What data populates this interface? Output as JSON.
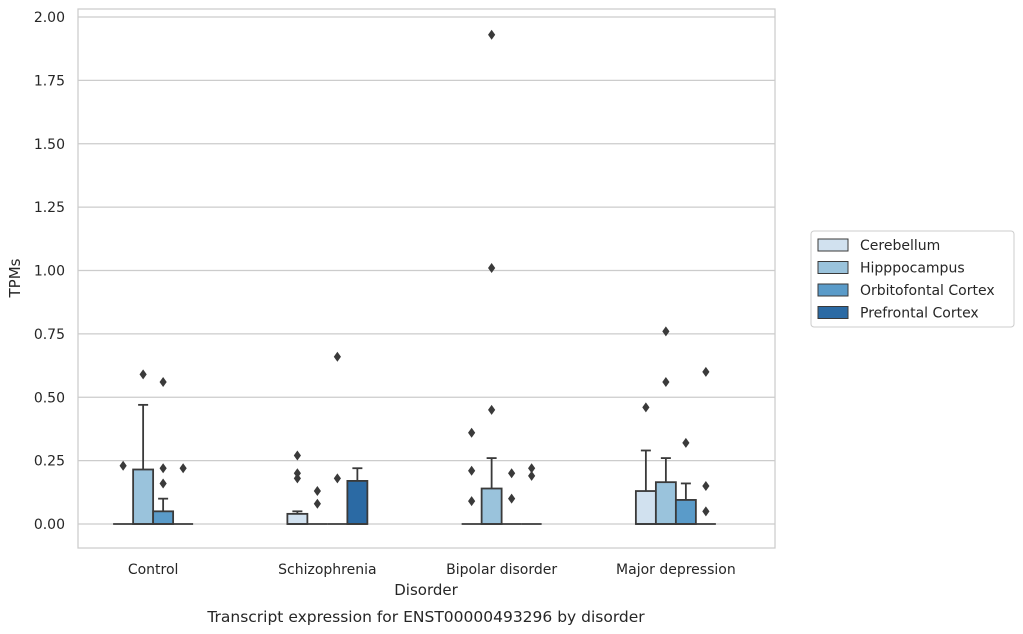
{
  "chart_data": {
    "type": "box",
    "xlabel": "Disorder",
    "ylabel": "TPMs",
    "caption": "Transcript expression for ENST00000493296 by disorder",
    "ylim": [
      -0.09,
      2.03
    ],
    "yticks": [
      "0.00",
      "0.25",
      "0.50",
      "0.75",
      "1.00",
      "1.25",
      "1.50",
      "1.75",
      "2.00"
    ],
    "grid": true,
    "legend_position": "right",
    "categories": [
      "Control",
      "Schizophrenia",
      "Bipolar disorder",
      "Major depression"
    ],
    "series": [
      {
        "name": "Cerebellum",
        "color": "#d1e1ef",
        "boxes": [
          {
            "q1": 0,
            "median": 0,
            "q3": 0,
            "whisker_low": 0,
            "whisker_high": 0,
            "outliers": [
              0.23
            ]
          },
          {
            "q1": 0,
            "median": 0,
            "q3": 0.04,
            "whisker_low": 0,
            "whisker_high": 0.05,
            "outliers": [
              0.18,
              0.2,
              0.27
            ]
          },
          {
            "q1": 0,
            "median": 0,
            "q3": 0,
            "whisker_low": 0,
            "whisker_high": 0,
            "outliers": [
              0.09,
              0.21,
              0.36
            ]
          },
          {
            "q1": 0,
            "median": 0,
            "q3": 0.13,
            "whisker_low": 0,
            "whisker_high": 0.29,
            "outliers": [
              0.46
            ]
          }
        ]
      },
      {
        "name": "Hipppocampus",
        "color": "#9ac3dc",
        "boxes": [
          {
            "q1": 0,
            "median": 0,
            "q3": 0.215,
            "whisker_low": 0,
            "whisker_high": 0.47,
            "outliers": [
              0.59
            ]
          },
          {
            "q1": 0,
            "median": 0,
            "q3": 0,
            "whisker_low": 0,
            "whisker_high": 0,
            "outliers": [
              0.08,
              0.13
            ]
          },
          {
            "q1": 0,
            "median": 0,
            "q3": 0.14,
            "whisker_low": 0,
            "whisker_high": 0.26,
            "outliers": [
              0.45,
              1.01,
              1.93
            ]
          },
          {
            "q1": 0,
            "median": 0,
            "q3": 0.165,
            "whisker_low": 0,
            "whisker_high": 0.26,
            "outliers": [
              0.56,
              0.76
            ]
          }
        ]
      },
      {
        "name": "Orbitofontal Cortex",
        "color": "#5a9bc9",
        "boxes": [
          {
            "q1": 0,
            "median": 0,
            "q3": 0.05,
            "whisker_low": 0,
            "whisker_high": 0.1,
            "outliers": [
              0.16,
              0.22,
              0.56
            ]
          },
          {
            "q1": 0,
            "median": 0,
            "q3": 0,
            "whisker_low": 0,
            "whisker_high": 0,
            "outliers": [
              0.18,
              0.66
            ]
          },
          {
            "q1": 0,
            "median": 0,
            "q3": 0,
            "whisker_low": 0,
            "whisker_high": 0,
            "outliers": [
              0.1,
              0.2
            ]
          },
          {
            "q1": 0,
            "median": 0,
            "q3": 0.095,
            "whisker_low": 0,
            "whisker_high": 0.16,
            "outliers": [
              0.32
            ]
          }
        ]
      },
      {
        "name": "Prefrontal Cortex",
        "color": "#2b6aa4",
        "boxes": [
          {
            "q1": 0,
            "median": 0,
            "q3": 0,
            "whisker_low": 0,
            "whisker_high": 0,
            "outliers": [
              0.22
            ]
          },
          {
            "q1": 0,
            "median": 0,
            "q3": 0.17,
            "whisker_low": 0,
            "whisker_high": 0.22,
            "outliers": []
          },
          {
            "q1": 0,
            "median": 0,
            "q3": 0,
            "whisker_low": 0,
            "whisker_high": 0,
            "outliers": [
              0.19,
              0.22
            ]
          },
          {
            "q1": 0,
            "median": 0,
            "q3": 0,
            "whisker_low": 0,
            "whisker_high": 0,
            "outliers": [
              0.05,
              0.15,
              0.6
            ]
          }
        ]
      }
    ]
  }
}
